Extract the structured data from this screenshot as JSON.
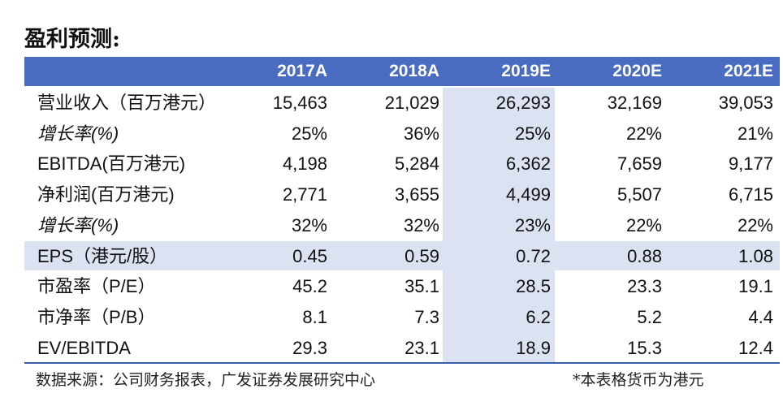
{
  "title": "盈利预测:",
  "table": {
    "columns": [
      "2017A",
      "2018A",
      "2019E",
      "2020E",
      "2021E"
    ],
    "rows": [
      [
        "营业收入（百万港元）",
        "15,463",
        "21,029",
        "26,293",
        "32,169",
        "39,053"
      ],
      [
        "增长率(%)",
        "25%",
        "36%",
        "25%",
        "22%",
        "21%"
      ],
      [
        "EBITDA(百万港元)",
        "4,198",
        "5,284",
        "6,362",
        "7,659",
        "9,177"
      ],
      [
        "净利润(百万港元)",
        "2,771",
        "3,655",
        "4,499",
        "5,507",
        "6,715"
      ],
      [
        "增长率(%)",
        "32%",
        "32%",
        "23%",
        "22%",
        "22%"
      ],
      [
        "EPS（港元/股）",
        "0.45",
        "0.59",
        "0.72",
        "0.88",
        "1.08"
      ],
      [
        "市盈率（P/E）",
        "45.2",
        "35.1",
        "28.5",
        "23.3",
        "19.1"
      ],
      [
        "市净率（P/B）",
        "8.1",
        "7.3",
        "6.2",
        "5.2",
        "4.4"
      ],
      [
        "EV/EBITDA",
        "29.3",
        "23.1",
        "18.9",
        "15.3",
        "12.4"
      ]
    ]
  },
  "footer": {
    "source": "数据来源：公司财务报表，广发证券发展研究中心",
    "note": "*本表格货币为港元"
  }
}
